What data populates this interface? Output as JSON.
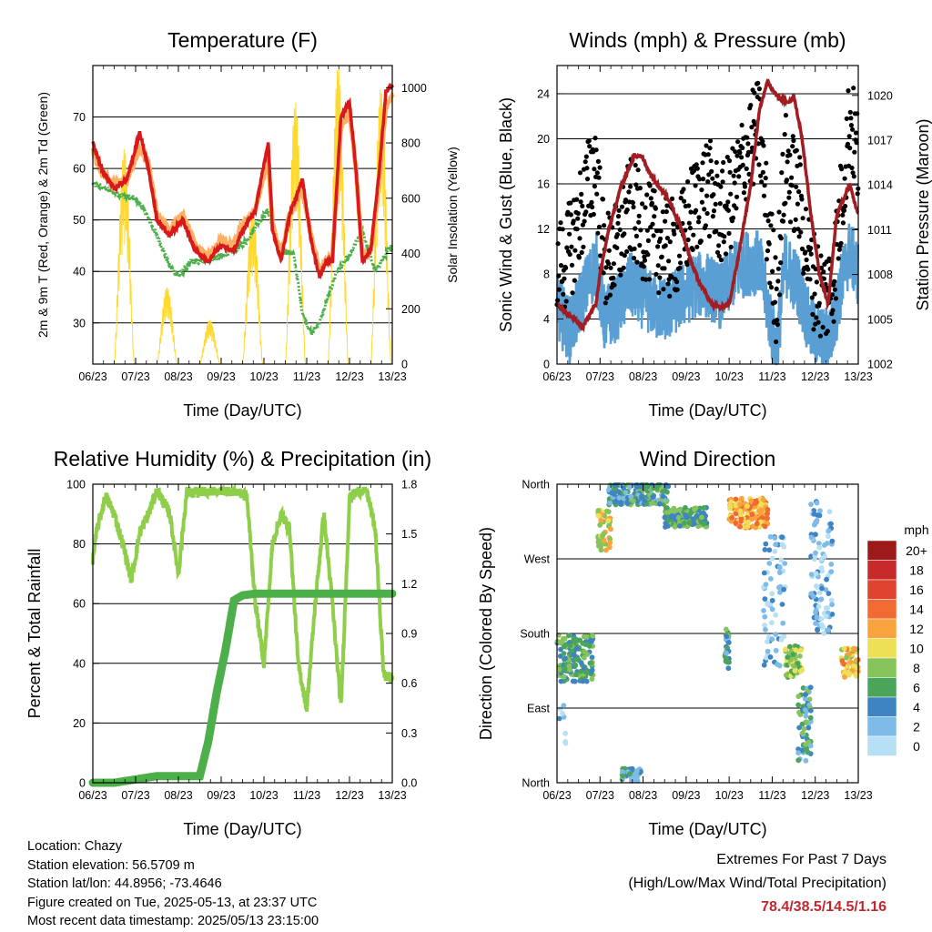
{
  "chart_data": [
    {
      "type": "line",
      "title": "Temperature (F)",
      "xlabel": "Time (Day/UTC)",
      "ylabel": "2m & 9m T (Red, Orange) & 2m Td (Green)",
      "y2label": "Solar Insolation (Yellow)",
      "x_ticks": [
        "06/23",
        "07/23",
        "08/23",
        "09/23",
        "10/23",
        "11/23",
        "12/23",
        "13/23"
      ],
      "ylim": [
        22,
        80
      ],
      "y_ticks": [
        30,
        40,
        50,
        60,
        70
      ],
      "y2lim": [
        0,
        1080
      ],
      "y2_ticks": [
        0,
        200,
        400,
        600,
        800,
        1000
      ],
      "grid": true,
      "series": [
        {
          "name": "2m T",
          "color": "#d7191c",
          "x": [
            0,
            0.2,
            0.5,
            0.8,
            1.1,
            1.3,
            1.5,
            1.8,
            2.1,
            2.4,
            2.7,
            3.0,
            3.3,
            3.5,
            3.8,
            4.1,
            4.2,
            4.4,
            4.6,
            4.9,
            5.1,
            5.3,
            5.45,
            5.6,
            5.8,
            6.0,
            6.15,
            6.3,
            6.5,
            6.7,
            6.85,
            7.0
          ],
          "y": [
            65,
            60,
            56,
            58,
            67,
            60,
            50,
            47,
            50,
            44,
            42,
            45,
            44,
            48,
            52,
            65,
            48,
            42,
            51,
            58,
            46,
            39,
            42,
            42,
            70,
            73,
            60,
            42,
            44,
            60,
            75,
            76
          ]
        },
        {
          "name": "9m T",
          "color": "#fdae61",
          "x": [
            0,
            0.2,
            0.5,
            0.8,
            1.1,
            1.3,
            1.5,
            1.8,
            2.1,
            2.4,
            2.7,
            3.0,
            3.3,
            3.5,
            3.8,
            4.1,
            4.2,
            4.4,
            4.6,
            4.9,
            5.1,
            5.3,
            5.45,
            5.6,
            5.8,
            6.0,
            6.15,
            6.3,
            6.5,
            6.7,
            6.85,
            7.0
          ],
          "y": [
            64,
            59,
            57,
            58,
            64,
            61,
            51,
            48,
            51,
            45,
            43,
            46,
            45,
            49,
            52,
            62,
            49,
            43,
            51,
            56,
            47,
            40,
            42,
            43,
            68,
            71,
            60,
            43,
            44,
            58,
            72,
            74
          ]
        },
        {
          "name": "2m Td",
          "color": "#4daf4a",
          "x": [
            0,
            0.3,
            0.6,
            1.0,
            1.2,
            1.5,
            1.8,
            2.0,
            2.3,
            2.6,
            3.0,
            3.3,
            3.6,
            3.9,
            4.1,
            4.3,
            4.5,
            4.7,
            4.9,
            5.1,
            5.3,
            5.5,
            5.7,
            6.0,
            6.3,
            6.6,
            6.9,
            7.0
          ],
          "y": [
            57,
            56,
            55,
            54,
            52,
            47,
            41,
            39,
            42,
            42,
            43,
            44,
            46,
            50,
            52,
            45,
            44,
            43,
            32,
            28,
            30,
            35,
            40,
            43,
            48,
            40,
            44,
            45
          ]
        },
        {
          "name": "Solar Insolation",
          "color": "#ffd92f",
          "axis": "y2",
          "x": [
            0.0,
            0.25,
            0.5,
            0.65,
            0.8,
            0.95,
            1.2,
            1.5,
            1.65,
            1.8,
            1.95,
            2.2,
            2.5,
            2.65,
            2.8,
            2.95,
            3.2,
            3.5,
            3.65,
            3.8,
            3.95,
            4.2,
            4.5,
            4.65,
            4.8,
            4.95,
            5.2,
            5.5,
            5.65,
            5.8,
            5.95,
            6.2,
            6.5,
            6.65,
            6.8,
            6.95,
            7.0
          ],
          "y": [
            0,
            0,
            350,
            780,
            300,
            0,
            0,
            200,
            280,
            100,
            0,
            0,
            50,
            160,
            80,
            0,
            0,
            350,
            560,
            150,
            0,
            0,
            420,
            950,
            320,
            0,
            0,
            620,
            1080,
            400,
            0,
            0,
            550,
            1000,
            420,
            0,
            0
          ]
        }
      ]
    },
    {
      "type": "scatter",
      "title": "Winds (mph) & Pressure (mb)",
      "xlabel": "Time (Day/UTC)",
      "ylabel": "Sonic Wind & Gust (Blue, Black)",
      "y2label": "Station Pressure (Maroon)",
      "x_ticks": [
        "06/23",
        "07/23",
        "08/23",
        "09/23",
        "10/23",
        "11/23",
        "12/23",
        "13/23"
      ],
      "ylim": [
        0,
        26.5
      ],
      "y_ticks": [
        0,
        4,
        8,
        12,
        16,
        20,
        24
      ],
      "y2lim": [
        1002,
        1022
      ],
      "y2_ticks": [
        1002,
        1005,
        1008,
        1011,
        1014,
        1017,
        1020
      ],
      "grid": true,
      "series": [
        {
          "name": "Sonic Wind",
          "color": "#5a9fd4",
          "x": [
            0,
            0.3,
            0.6,
            0.9,
            1.1,
            1.4,
            1.7,
            2.0,
            2.3,
            2.6,
            2.9,
            3.2,
            3.5,
            3.8,
            4.1,
            4.4,
            4.7,
            4.9,
            5.1,
            5.3,
            5.6,
            5.9,
            6.2,
            6.4,
            6.6,
            6.8,
            7.0
          ],
          "y": [
            5,
            3,
            6,
            9,
            4,
            5,
            7,
            6,
            5,
            5,
            6,
            7,
            7,
            6,
            8,
            9,
            9,
            5,
            1,
            9,
            7,
            3,
            2,
            3,
            7,
            10,
            8
          ]
        },
        {
          "name": "Gust",
          "color": "#000000",
          "x": [
            0,
            0.3,
            0.6,
            0.9,
            1.1,
            1.4,
            1.7,
            2.0,
            2.3,
            2.6,
            2.9,
            3.2,
            3.5,
            3.8,
            4.1,
            4.4,
            4.7,
            4.9,
            5.1,
            5.3,
            5.6,
            5.9,
            6.2,
            6.4,
            6.6,
            6.8,
            7.0
          ],
          "y": [
            8,
            10,
            14,
            18,
            9,
            10,
            14,
            12,
            11,
            10,
            11,
            14,
            16,
            13,
            15,
            19,
            21,
            12,
            6,
            18,
            15,
            8,
            6,
            7,
            14,
            22,
            18
          ]
        },
        {
          "name": "Station Pressure",
          "color": "#a11d21",
          "axis": "y2",
          "x": [
            0,
            0.2,
            0.4,
            0.6,
            0.9,
            1.0,
            1.2,
            1.5,
            1.8,
            2.0,
            2.1,
            2.3,
            2.6,
            2.9,
            3.1,
            3.3,
            3.6,
            3.8,
            4.0,
            4.2,
            4.5,
            4.7,
            4.9,
            5.0,
            5.2,
            5.4,
            5.5,
            5.7,
            5.9,
            6.1,
            6.3,
            6.5,
            6.8,
            7.0
          ],
          "y": [
            1006,
            1005.5,
            1005,
            1004.5,
            1006,
            1008,
            1011,
            1014,
            1016,
            1015.8,
            1015,
            1014.2,
            1013,
            1011,
            1009,
            1007.5,
            1006,
            1005.8,
            1006,
            1009,
            1014,
            1019,
            1021,
            1020.3,
            1019.8,
            1019.5,
            1020,
            1017,
            1012,
            1008,
            1006,
            1012,
            1014,
            1012
          ]
        }
      ]
    },
    {
      "type": "line",
      "title": "Relative Humidity (%) & Precipitation (in)",
      "xlabel": "Time (Day/UTC)",
      "ylabel": "Percent & Total Rainfall",
      "x_ticks": [
        "06/23",
        "07/23",
        "08/23",
        "09/23",
        "10/23",
        "11/23",
        "12/23",
        "13/23"
      ],
      "ylim": [
        0,
        100
      ],
      "y_ticks": [
        0,
        20,
        40,
        60,
        80,
        100
      ],
      "y2lim": [
        0,
        1.8
      ],
      "y2_ticks": [
        "0.0",
        "0.3",
        "0.6",
        "0.9",
        "1.2",
        "1.5",
        "1.8"
      ],
      "grid": true,
      "series": [
        {
          "name": "Relative Humidity",
          "color": "#8fce4a",
          "x": [
            0,
            0.1,
            0.3,
            0.5,
            0.7,
            0.9,
            1.1,
            1.3,
            1.5,
            1.8,
            2.0,
            2.2,
            2.4,
            2.6,
            3.0,
            3.3,
            3.6,
            3.8,
            4.0,
            4.2,
            4.4,
            4.6,
            4.8,
            5.0,
            5.2,
            5.4,
            5.6,
            5.8,
            6.0,
            6.2,
            6.4,
            6.6,
            6.8,
            7.0
          ],
          "y": [
            75,
            85,
            96,
            90,
            80,
            68,
            84,
            90,
            98,
            90,
            70,
            98,
            97,
            98,
            98,
            98,
            96,
            60,
            40,
            80,
            90,
            85,
            40,
            25,
            60,
            90,
            60,
            25,
            95,
            98,
            98,
            85,
            36,
            35
          ]
        },
        {
          "name": "Total Rainfall",
          "color": "#4daf4a",
          "axis": "y2",
          "x": [
            0,
            0.5,
            1.0,
            1.5,
            2.0,
            2.5,
            2.7,
            2.9,
            3.1,
            3.3,
            3.5,
            3.8,
            4.1,
            4.5,
            5.0,
            5.5,
            6.0,
            6.5,
            7.0
          ],
          "y": [
            0,
            0,
            0.02,
            0.04,
            0.04,
            0.04,
            0.25,
            0.55,
            0.8,
            1.1,
            1.13,
            1.14,
            1.14,
            1.14,
            1.14,
            1.14,
            1.14,
            1.14,
            1.14
          ]
        }
      ]
    },
    {
      "type": "scatter",
      "title": "Wind Direction",
      "xlabel": "Time (Day/UTC)",
      "ylabel": "Direction (Colored By Speed)",
      "x_ticks": [
        "06/23",
        "07/23",
        "08/23",
        "09/23",
        "10/23",
        "11/23",
        "12/23",
        "13/23"
      ],
      "y_ticks": [
        "North",
        "East",
        "South",
        "West",
        "North"
      ],
      "ylim": [
        0,
        360
      ],
      "grid": true,
      "legend": {
        "title": "mph",
        "labels": [
          "20+",
          "18",
          "16",
          "14",
          "12",
          "10",
          "8",
          "6",
          "4",
          "2",
          "0"
        ],
        "colors": [
          "#9e1a1a",
          "#c62a2a",
          "#e0432f",
          "#f06a32",
          "#f9a33f",
          "#ede056",
          "#86c35a",
          "#4aa45a",
          "#3f84c2",
          "#7fbbe8",
          "#b7e0f5"
        ],
        "placement": "right"
      }
    }
  ],
  "info": {
    "location": "Location: Chazy",
    "elevation": "Station elevation: 56.5709 m",
    "latlon": "Station lat/lon: 44.8956; -73.4646",
    "created": "Figure created on Tue, 2025-05-13, at 23:37 UTC",
    "recent": "Most recent data timestamp: 2025/05/13 23:15:00"
  },
  "extremes": {
    "title": "Extremes For Past 7 Days",
    "subtitle": "(High/Low/Max Wind/Total Precipitation)",
    "values": "78.4/38.5/14.5/1.16"
  }
}
